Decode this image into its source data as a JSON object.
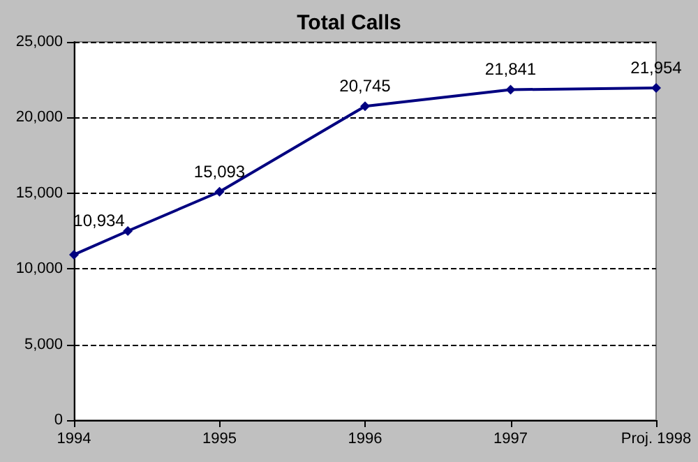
{
  "chart_data": {
    "type": "line",
    "title": "Total Calls",
    "x": [
      1994,
      1994.37,
      1995,
      1996,
      1997,
      1998
    ],
    "series": [
      {
        "color": "#000080",
        "values": [
          10934,
          12500,
          15093,
          20745,
          21841,
          21954
        ],
        "value_labels": [
          "10,934",
          null,
          "15,093",
          "20,745",
          "21,841",
          "21,954"
        ]
      }
    ],
    "xlim": [
      1994,
      1998
    ],
    "xticks": [
      {
        "value": 1994,
        "label": "1994"
      },
      {
        "value": 1995,
        "label": "1995"
      },
      {
        "value": 1996,
        "label": "1996"
      },
      {
        "value": 1997,
        "label": "1997"
      },
      {
        "value": 1998,
        "label": "Proj. 1998"
      }
    ],
    "ylim": [
      0,
      25000
    ],
    "yticks": [
      {
        "value": 0,
        "label": "0"
      },
      {
        "value": 5000,
        "label": "5,000"
      },
      {
        "value": 10000,
        "label": "10,000"
      },
      {
        "value": 15000,
        "label": "15,000"
      },
      {
        "value": 20000,
        "label": "20,000"
      },
      {
        "value": 25000,
        "label": "25,000"
      }
    ],
    "grid": "y",
    "marker": "diamond",
    "line_style": "solid"
  }
}
